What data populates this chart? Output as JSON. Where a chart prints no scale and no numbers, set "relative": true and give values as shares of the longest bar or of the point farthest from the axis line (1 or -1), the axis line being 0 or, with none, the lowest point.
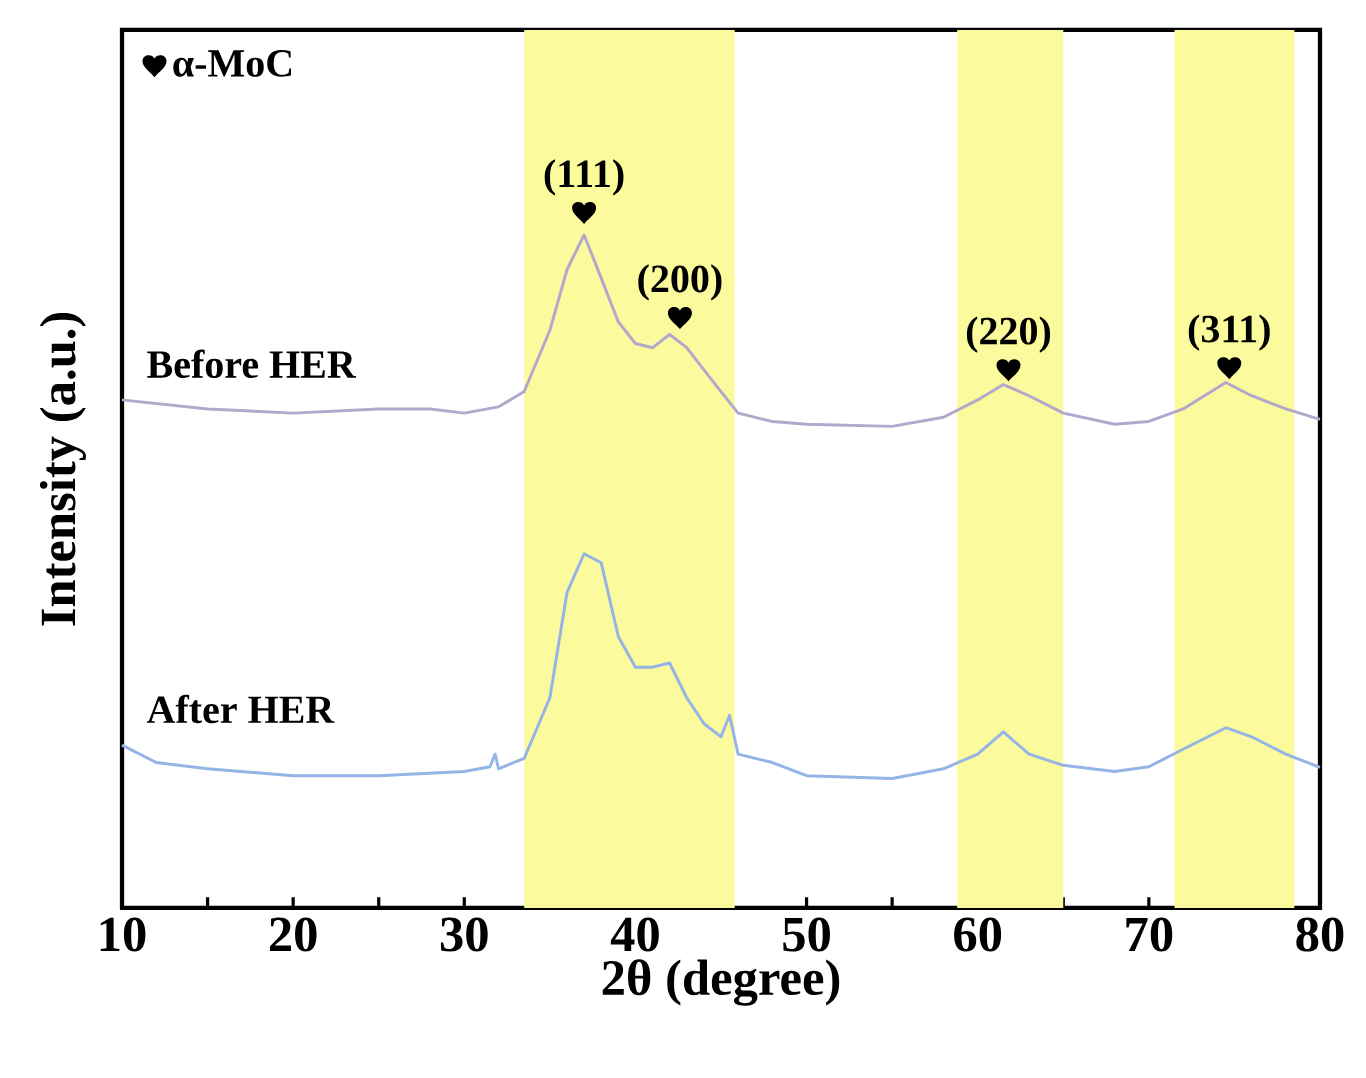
{
  "chart_data": {
    "type": "line",
    "relative": true,
    "xlabel": "2θ (degree)",
    "ylabel": "Intensity (a.u.)",
    "xlim": [
      10,
      80
    ],
    "xticks": [
      10,
      {
        "value": 15,
        "label": null
      },
      20,
      {
        "value": 25,
        "label": null
      },
      30,
      {
        "value": 35,
        "label": null
      },
      40,
      {
        "value": 45,
        "label": null
      },
      50,
      {
        "value": 55,
        "label": null
      },
      60,
      {
        "value": 65,
        "label": null
      },
      70,
      {
        "value": 75,
        "label": null
      },
      80
    ],
    "tick_labels": "x",
    "legend": "top left",
    "grid": false,
    "series": [
      {
        "name": "Before HER",
        "color": "#b4a7cc",
        "x": [
          10,
          15,
          20,
          25,
          28,
          30,
          32,
          33.5,
          35,
          36,
          37,
          38,
          39,
          40,
          41,
          42,
          43,
          44,
          45,
          46,
          48,
          50,
          55,
          58,
          60,
          61.5,
          63,
          65,
          68,
          70,
          72,
          74.5,
          76,
          78,
          80
        ],
        "values": [
          0.73,
          0.717,
          0.711,
          0.717,
          0.717,
          0.711,
          0.72,
          0.742,
          0.83,
          0.917,
          0.967,
          0.905,
          0.842,
          0.811,
          0.805,
          0.824,
          0.805,
          0.773,
          0.742,
          0.711,
          0.699,
          0.695,
          0.692,
          0.705,
          0.73,
          0.752,
          0.736,
          0.711,
          0.695,
          0.699,
          0.717,
          0.755,
          0.736,
          0.717,
          0.702
        ]
      },
      {
        "name": "After HER",
        "color": "#94b4e8",
        "x": [
          10,
          12,
          15,
          20,
          25,
          30,
          31.5,
          31.8,
          32,
          33.5,
          35,
          36,
          37,
          38,
          39,
          40,
          41,
          42,
          43,
          44,
          45,
          45.5,
          46,
          48,
          50,
          55,
          58,
          60,
          61.5,
          63,
          65,
          68,
          70,
          72,
          74.5,
          76,
          78,
          80
        ],
        "values": [
          0.234,
          0.209,
          0.2,
          0.19,
          0.19,
          0.196,
          0.203,
          0.221,
          0.2,
          0.215,
          0.302,
          0.453,
          0.509,
          0.496,
          0.39,
          0.346,
          0.346,
          0.352,
          0.302,
          0.265,
          0.246,
          0.277,
          0.221,
          0.209,
          0.19,
          0.186,
          0.2,
          0.221,
          0.253,
          0.221,
          0.205,
          0.196,
          0.203,
          0.228,
          0.259,
          0.246,
          0.221,
          0.202
        ]
      },
      {
        "name": "α-MoC",
        "type": "scatter",
        "color": "#000000",
        "x": [
          37.0,
          42.6,
          61.8,
          74.7
        ],
        "values": [
          1.0,
          0.849,
          0.774,
          0.777
        ]
      }
    ],
    "bands": [
      {
        "axis": "x",
        "from": 33.5,
        "to": 45.8,
        "color": "#fbfa9c"
      },
      {
        "axis": "x",
        "from": 58.8,
        "to": 65.0,
        "color": "#fbfa9c"
      },
      {
        "axis": "x",
        "from": 71.5,
        "to": 78.5,
        "color": "#fbfa9c"
      }
    ],
    "annotations": [
      {
        "text": "(111)",
        "x": 37.0,
        "y": 1.0
      },
      {
        "text": "(200)",
        "x": 42.6,
        "y": 0.849
      },
      {
        "text": "(220)",
        "x": 61.8,
        "y": 0.774
      },
      {
        "text": "(311)",
        "x": 74.7,
        "y": 0.777
      }
    ]
  }
}
